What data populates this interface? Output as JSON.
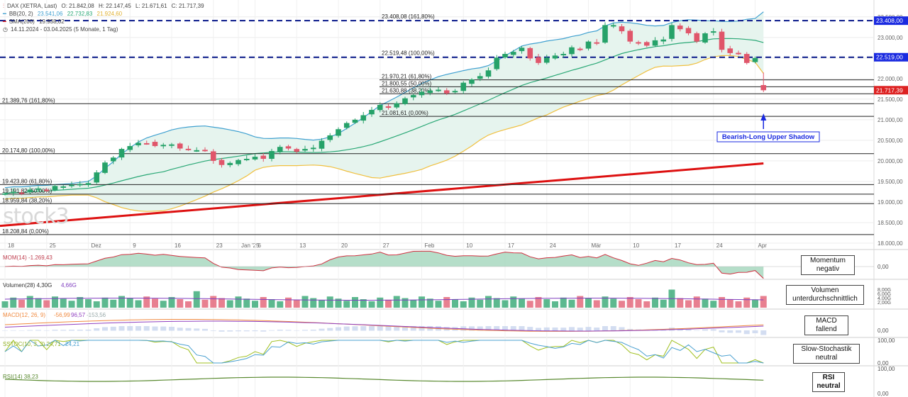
{
  "header": {
    "line1": {
      "symbol": "DAX (XETRA, Last)",
      "o": "O: 21.842,08",
      "h": "H: 22.147,45",
      "l": "L: 21.671,61",
      "c": "C: 21.717,39"
    },
    "bb": {
      "label": "BB(20, 2)",
      "v1": "23.541,06",
      "v2": "22.732,83",
      "v3": "21.924,60"
    },
    "sma": {
      "label": "SMA(200)",
      "value": "19.938,02"
    },
    "period": "14.11.2024 - 03.04.2025 (5 Monate, 1 Tag)"
  },
  "watermark": "stock3",
  "colors": {
    "up": "#26a269",
    "down": "#e0566b",
    "bb_upper": "#3fa0d0",
    "bb_mid": "#2aa876",
    "bb_lower": "#f0c040",
    "bb_fill": "#e6f4ee",
    "sma": "#dd1111",
    "dashed": "#0a1a8a",
    "price_label": "#dd2222",
    "level_label": "#1a2ae0",
    "arrow": "#1a2ae0"
  },
  "chart_data": [
    {
      "type": "candlestick",
      "title": "DAX (XETRA, Last)",
      "ylim": [
        18000,
        23600
      ],
      "yticks": [
        "23.500,00",
        "23.000,00",
        "22.500,00",
        "22.000,00",
        "21.500,00",
        "21.000,00",
        "20.500,00",
        "20.000,00",
        "19.500,00",
        "19.000,00",
        "18.500,00",
        "18.000,00"
      ],
      "ytick_values": [
        23500,
        23000,
        22500,
        22000,
        21500,
        21000,
        20500,
        20000,
        19500,
        19000,
        18500,
        18000
      ],
      "xticks": [
        {
          "label": "18",
          "i": 0
        },
        {
          "label": "25",
          "i": 5
        },
        {
          "label": "Dez",
          "i": 10
        },
        {
          "label": "9",
          "i": 15
        },
        {
          "label": "16",
          "i": 20
        },
        {
          "label": "23",
          "i": 25
        },
        {
          "label": "Jan '25",
          "i": 28
        },
        {
          "label": "6",
          "i": 30
        },
        {
          "label": "13",
          "i": 35
        },
        {
          "label": "20",
          "i": 40
        },
        {
          "label": "27",
          "i": 45
        },
        {
          "label": "Feb",
          "i": 50
        },
        {
          "label": "10",
          "i": 55
        },
        {
          "label": "17",
          "i": 60
        },
        {
          "label": "24",
          "i": 65
        },
        {
          "label": "Mär",
          "i": 70
        },
        {
          "label": "10",
          "i": 75
        },
        {
          "label": "17",
          "i": 80
        },
        {
          "label": "24",
          "i": 85
        },
        {
          "label": "Apr",
          "i": 90
        }
      ],
      "close": [
        19210,
        19250,
        19230,
        19300,
        19330,
        19280,
        19390,
        19380,
        19420,
        19440,
        19460,
        19720,
        19960,
        20080,
        20290,
        20360,
        20440,
        20430,
        20360,
        20390,
        20400,
        20300,
        20290,
        20260,
        20250,
        20000,
        19900,
        19950,
        20020,
        20050,
        20100,
        20050,
        20240,
        20340,
        20300,
        20220,
        20290,
        20320,
        20490,
        20620,
        20770,
        20920,
        21000,
        21110,
        21240,
        21360,
        21290,
        21400,
        21520,
        21600,
        21680,
        21710,
        21730,
        21640,
        21700,
        21900,
        21980,
        22060,
        22200,
        22510,
        22600,
        22650,
        22750,
        22490,
        22380,
        22510,
        22560,
        22600,
        22760,
        22720,
        22900,
        22850,
        23300,
        23300,
        23150,
        22900,
        22860,
        22800,
        22930,
        22950,
        23300,
        23200,
        23100,
        22900,
        23100,
        23150,
        22700,
        22620,
        22620,
        22380,
        22500,
        21717
      ],
      "series": [
        {
          "name": "BB(20, 2)"
        },
        {
          "name": "SMA(200)"
        }
      ],
      "fib_levels": [
        {
          "label": "23.408,08 (161,80%)",
          "value": 23408.08,
          "dashed": true
        },
        {
          "label": "22.519,48 (100,00%)",
          "value": 22519.48,
          "dashed": true
        },
        {
          "label": "21.970,21 (61,80%)",
          "value": 21970.21,
          "dashed": false
        },
        {
          "label": "21.800,55 (50,00%)",
          "value": 21800.55,
          "dashed": false
        },
        {
          "label": "21.630,88 (38,20%)",
          "value": 21630.88,
          "dashed": false
        },
        {
          "label": "21.081,61 (0,00%)",
          "value": 21081.61,
          "dashed": false
        },
        {
          "label": "21.389,76 (161,80%)",
          "value": 21389.76,
          "dashed": false
        },
        {
          "label": "20.174,80 (100,00%)",
          "value": 20174.8,
          "dashed": false
        },
        {
          "label": "19.423,80 (61,80%)",
          "value": 19423.8,
          "dashed": false
        },
        {
          "label": "19.191,82 (50,00%)",
          "value": 19191.82,
          "dashed": false
        },
        {
          "label": "18.959,84 (38,20%)",
          "value": 18959.84,
          "dashed": false
        },
        {
          "label": "18.208,84 (0,00%)",
          "value": 18208.84,
          "dashed": false
        }
      ],
      "price_labels": [
        {
          "text": "23.408,00",
          "value": 23408,
          "kind": "level"
        },
        {
          "text": "22.519,00",
          "value": 22519,
          "kind": "level"
        },
        {
          "text": "21.717,39",
          "value": 21717.39,
          "kind": "price"
        }
      ],
      "annotation": "Bearish-Long Upper Shadow"
    },
    {
      "type": "area",
      "name": "MOM(14)",
      "value": "-1.269,43",
      "yticks": [
        "0,00"
      ],
      "box": "Momentum negativ"
    },
    {
      "type": "bar",
      "name": "Volumen(28)",
      "values_text": [
        "4,30G",
        "4,66G"
      ],
      "yticks": [
        "8,00G",
        "6,00G",
        "4,00G",
        "2,00G"
      ],
      "box": "Volumen unterdurchschnittlich"
    },
    {
      "type": "line",
      "name": "MACD(12, 26, 9)",
      "values_text": [
        "-56,99",
        "96,57",
        "-153,56"
      ],
      "yticks": [
        "0,00"
      ],
      "box": "MACD fallend"
    },
    {
      "type": "line",
      "name": "SSTOC(10, 3, 3)",
      "values_text": [
        "24,71",
        "24,21"
      ],
      "yticks": [
        "100,00",
        "0,00"
      ],
      "box": "Slow-Stochastik neutral"
    },
    {
      "type": "line",
      "name": "RSI(14)",
      "values_text": [
        "38,23"
      ],
      "yticks": [
        "100,00",
        "0,00"
      ],
      "box": "RSI neutral"
    }
  ],
  "boxes": {
    "momentum": {
      "line1": "Momentum",
      "line2": "negativ"
    },
    "volume": {
      "line1": "Volumen",
      "line2": "unterdurchschnittlich"
    },
    "macd": {
      "line1": "MACD",
      "line2": "fallend"
    },
    "stoch": {
      "line1": "Slow-Stochastik",
      "line2": "neutral"
    },
    "rsi": {
      "line1": "RSI",
      "line2": "neutral"
    }
  }
}
